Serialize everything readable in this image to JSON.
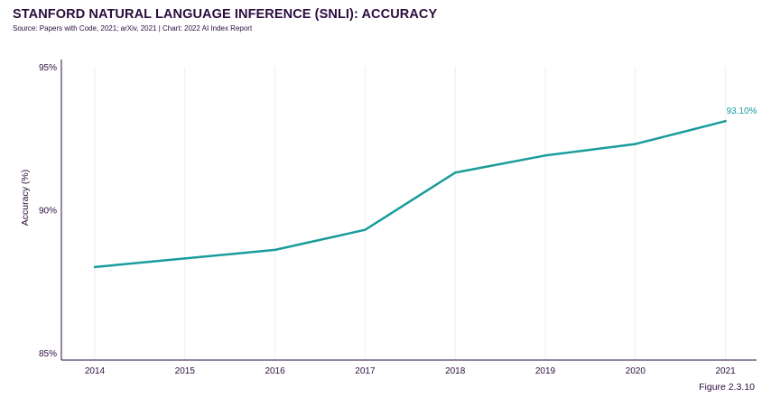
{
  "header": {
    "title": "STANFORD NATURAL LANGUAGE INFERENCE (SNLI): ACCURACY",
    "subtitle": "Source: Papers with Code, 2021; arXiv, 2021 | Chart: 2022 AI Index Report"
  },
  "footer": {
    "figure": "Figure 2.3.10"
  },
  "chart_data": {
    "type": "line",
    "title": "STANFORD NATURAL LANGUAGE INFERENCE (SNLI): ACCURACY",
    "xlabel": "",
    "ylabel": "Accuracy (%)",
    "x": [
      "2014",
      "2015",
      "2016",
      "2017",
      "2018",
      "2019",
      "2020",
      "2021"
    ],
    "series": [
      {
        "values": [
          88.0,
          88.3,
          88.6,
          89.3,
          91.3,
          91.9,
          92.3,
          93.1
        ]
      }
    ],
    "ylim": [
      85,
      95
    ],
    "yticks": [
      85,
      90,
      95
    ],
    "ytick_labels": [
      "85%",
      "90%",
      "95%"
    ],
    "data_labels": [
      {
        "index": 7,
        "text": "93.10%"
      }
    ],
    "grid": {
      "vertical": true,
      "horizontal": false
    },
    "colors": {
      "line": "#1a9c9c",
      "axis": "#2a0d3e",
      "grid": "#eeeeee",
      "text": "#2a0d3e"
    }
  }
}
